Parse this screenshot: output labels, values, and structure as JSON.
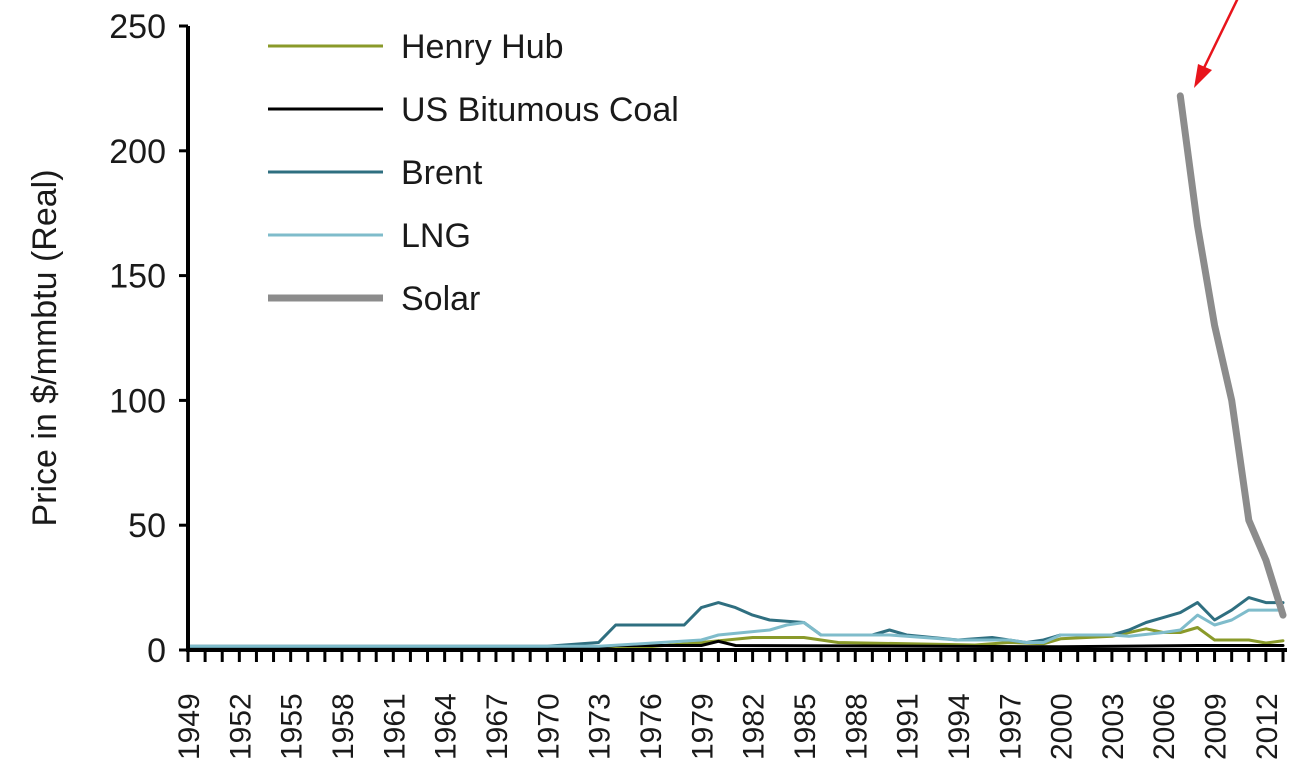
{
  "chart_data": {
    "type": "line",
    "title": "",
    "xlabel": "",
    "ylabel": "Price in $/mmbtu (Real)",
    "ylim": [
      0,
      250
    ],
    "xlim": [
      1949,
      2013
    ],
    "y_ticks": [
      "0",
      "50",
      "100",
      "150",
      "200",
      "250"
    ],
    "x_ticks": [
      "1949",
      "1952",
      "1955",
      "1958",
      "1961",
      "1964",
      "1967",
      "1970",
      "1973",
      "1976",
      "1979",
      "1982",
      "1985",
      "1988",
      "1991",
      "1994",
      "1997",
      "2000",
      "2003",
      "2006",
      "2009",
      "2012"
    ],
    "legend_position": "top-left",
    "grid": false,
    "annotation": "red arrow pointing at the start of the Solar series",
    "series": [
      {
        "name": "Henry Hub",
        "color": "#8a9a2a",
        "width": 3,
        "points": [
          [
            1949,
            1
          ],
          [
            1958,
            1
          ],
          [
            1970,
            0.5
          ],
          [
            1975,
            0.8
          ],
          [
            1979,
            3
          ],
          [
            1982,
            5
          ],
          [
            1985,
            5
          ],
          [
            1987,
            3
          ],
          [
            1995,
            2
          ],
          [
            1997,
            3
          ],
          [
            1999,
            2.5
          ],
          [
            2000,
            4.5
          ],
          [
            2003,
            5.5
          ],
          [
            2005,
            8.5
          ],
          [
            2006,
            7
          ],
          [
            2007,
            7
          ],
          [
            2008,
            9
          ],
          [
            2009,
            4
          ],
          [
            2011,
            4
          ],
          [
            2012,
            2.8
          ],
          [
            2013,
            3.7
          ]
        ]
      },
      {
        "name": "US Bitumous Coal",
        "color": "#000000",
        "width": 3,
        "points": [
          [
            1949,
            1
          ],
          [
            1973,
            1
          ],
          [
            1974,
            1.8
          ],
          [
            1979,
            1.8
          ],
          [
            1980,
            3.5
          ],
          [
            1981,
            1.8
          ],
          [
            1990,
            1.6
          ],
          [
            2000,
            1.3
          ],
          [
            2008,
            1.8
          ],
          [
            2013,
            1.8
          ]
        ]
      },
      {
        "name": "Brent",
        "color": "#2f6f80",
        "width": 3,
        "points": [
          [
            1949,
            1.5
          ],
          [
            1970,
            1.5
          ],
          [
            1973,
            3
          ],
          [
            1974,
            10
          ],
          [
            1978,
            10
          ],
          [
            1979,
            17
          ],
          [
            1980,
            19
          ],
          [
            1981,
            17
          ],
          [
            1982,
            14
          ],
          [
            1983,
            12
          ],
          [
            1985,
            11
          ],
          [
            1986,
            6
          ],
          [
            1989,
            6
          ],
          [
            1990,
            8
          ],
          [
            1991,
            6
          ],
          [
            1994,
            4
          ],
          [
            1996,
            5
          ],
          [
            1998,
            3
          ],
          [
            1999,
            4
          ],
          [
            2000,
            6
          ],
          [
            2003,
            6
          ],
          [
            2004,
            8
          ],
          [
            2005,
            11
          ],
          [
            2006,
            13
          ],
          [
            2007,
            15
          ],
          [
            2008,
            19
          ],
          [
            2009,
            12
          ],
          [
            2010,
            16
          ],
          [
            2011,
            21
          ],
          [
            2012,
            19
          ],
          [
            2013,
            19
          ]
        ]
      },
      {
        "name": "LNG",
        "color": "#7fbccb",
        "width": 3,
        "points": [
          [
            1949,
            1.5
          ],
          [
            1970,
            1.5
          ],
          [
            1973,
            1.5
          ],
          [
            1979,
            4
          ],
          [
            1980,
            6
          ],
          [
            1983,
            8
          ],
          [
            1984,
            10
          ],
          [
            1985,
            11
          ],
          [
            1986,
            6
          ],
          [
            1990,
            6
          ],
          [
            1994,
            4
          ],
          [
            1997,
            4
          ],
          [
            1998,
            3
          ],
          [
            1999,
            3
          ],
          [
            2000,
            6
          ],
          [
            2003,
            6
          ],
          [
            2004,
            5.5
          ],
          [
            2006,
            7
          ],
          [
            2007,
            8
          ],
          [
            2008,
            14
          ],
          [
            2009,
            10
          ],
          [
            2010,
            12
          ],
          [
            2011,
            16
          ],
          [
            2013,
            16
          ]
        ]
      },
      {
        "name": "Solar",
        "color": "#8c8c8c",
        "width": 7,
        "points": [
          [
            2007,
            222
          ],
          [
            2008,
            170
          ],
          [
            2009,
            130
          ],
          [
            2010,
            100
          ],
          [
            2011,
            52
          ],
          [
            2012,
            36
          ],
          [
            2013,
            14
          ]
        ]
      }
    ]
  }
}
